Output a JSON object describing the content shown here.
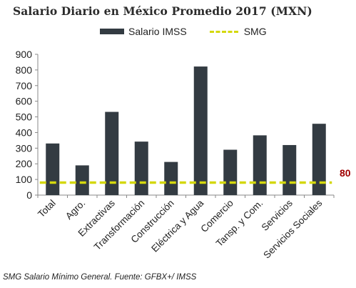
{
  "title": "Salario Diario en México Promedio 2017 (MXN)",
  "legend": {
    "series1": "Salario IMSS",
    "series2": "SMG"
  },
  "footnote": "SMG Salario Mínimo General. Fuente: GFBX+/ IMSS",
  "colors": {
    "bars": "#333b42",
    "smg_line": "#d4d80d",
    "smg_label": "#a00000"
  },
  "chart_data": {
    "type": "bar",
    "categories": [
      "Total",
      "Agro.",
      "Extractivas",
      "Transformación",
      "Construcción",
      "Eléctrica y Agua",
      "Comercio",
      "Tansp. y Com.",
      "Servicios",
      "Servicios Sociales"
    ],
    "series": [
      {
        "name": "Salario IMSS",
        "type": "bar",
        "values": [
          330,
          190,
          532,
          342,
          212,
          822,
          290,
          382,
          320,
          456
        ]
      },
      {
        "name": "SMG",
        "type": "line",
        "style": "dashed",
        "values": [
          80,
          80,
          80,
          80,
          80,
          80,
          80,
          80,
          80,
          80
        ]
      }
    ],
    "smg_label": "80",
    "ylim": [
      0,
      900
    ],
    "yticks": [
      0,
      100,
      200,
      300,
      400,
      500,
      600,
      700,
      800,
      900
    ],
    "grid": false,
    "legend_position": "top"
  }
}
